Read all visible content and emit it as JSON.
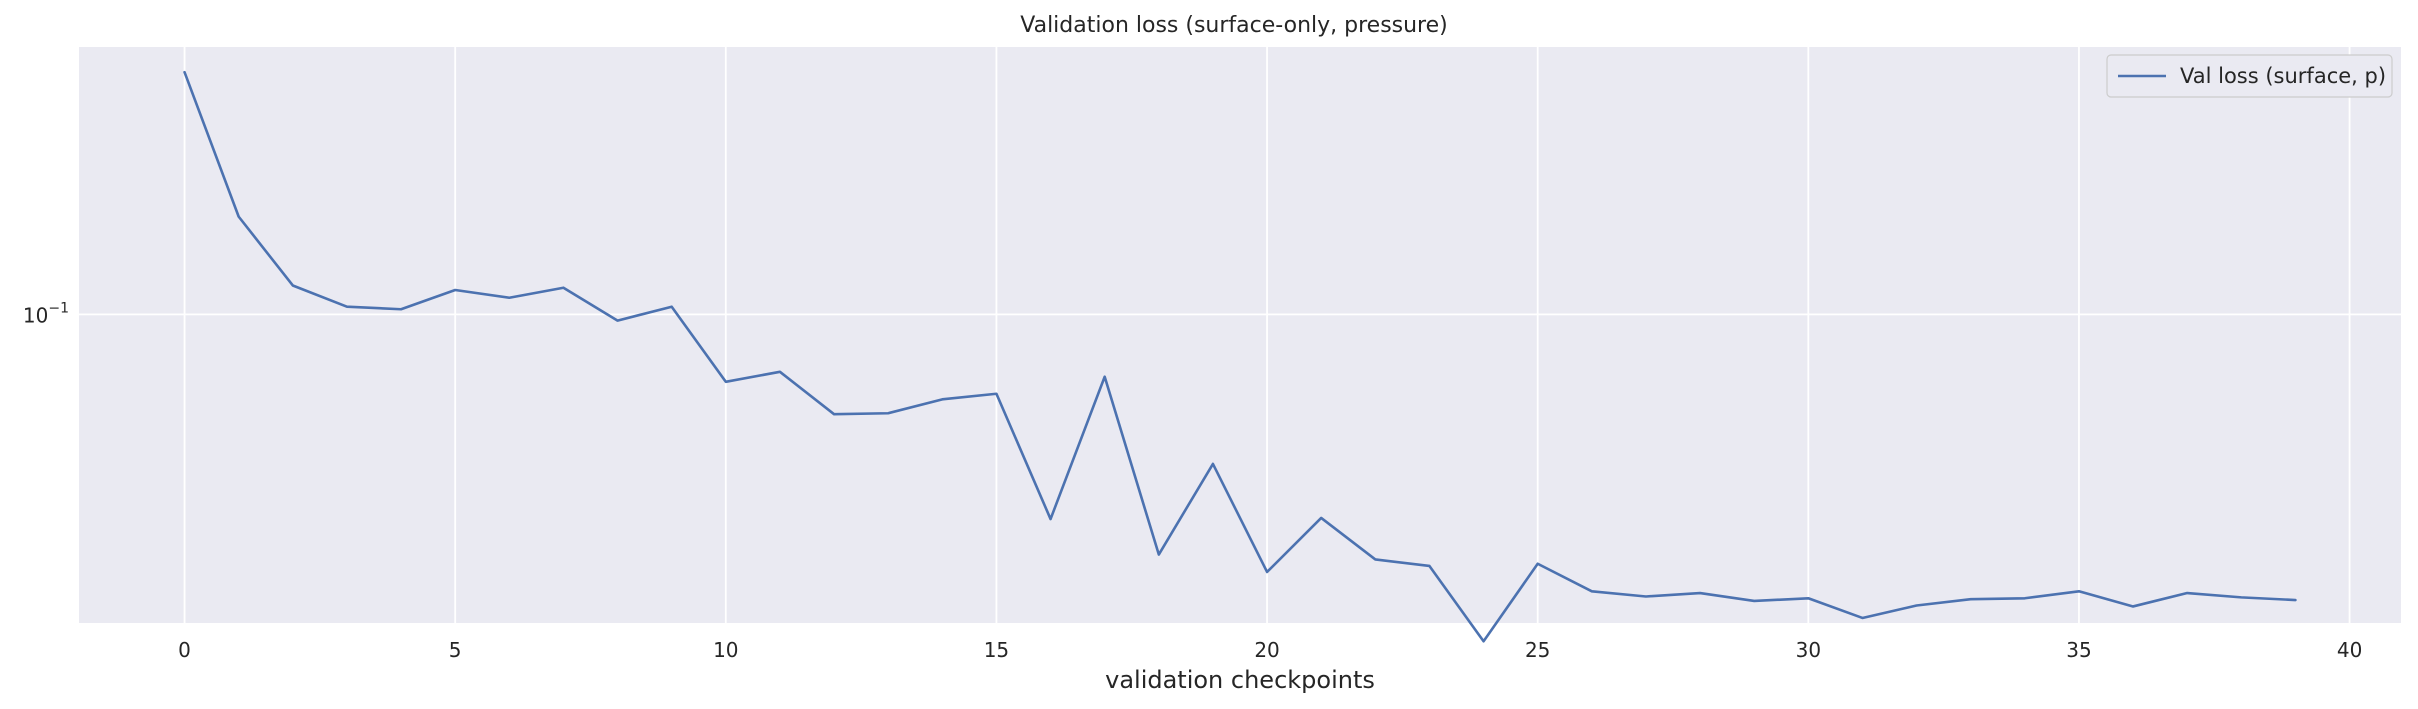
{
  "chart_data": {
    "type": "line",
    "title": "Validation loss (surface-only, pressure)",
    "xlabel": "validation checkpoints",
    "ylabel": "",
    "yscale": "log",
    "xlim": [
      -1.95,
      40.95
    ],
    "ylim": [
      0.0171,
      0.462
    ],
    "x_ticks": [
      0,
      5,
      10,
      15,
      20,
      25,
      30,
      35,
      40
    ],
    "y_ticks": [
      {
        "value": 0.1,
        "base": "10",
        "exponent": "−1"
      }
    ],
    "grid": true,
    "legend_position": "top-right",
    "series": [
      {
        "name": "Val loss (surface, p)",
        "color": "#4c72b0",
        "x": [
          0,
          1,
          2,
          3,
          4,
          5,
          6,
          7,
          8,
          9,
          10,
          11,
          12,
          13,
          14,
          15,
          16,
          17,
          18,
          19,
          20,
          21,
          22,
          23,
          24,
          25,
          26,
          27,
          28,
          29,
          30,
          31,
          32,
          33,
          34,
          35,
          36,
          37,
          38,
          39
        ],
        "y": [
          0.4,
          0.175,
          0.118,
          0.1045,
          0.103,
          0.115,
          0.11,
          0.1165,
          0.0965,
          0.1045,
          0.068,
          0.072,
          0.0565,
          0.0568,
          0.0615,
          0.0635,
          0.031,
          0.07,
          0.0253,
          0.0425,
          0.0229,
          0.0312,
          0.0246,
          0.0237,
          0.0154,
          0.024,
          0.0205,
          0.0199,
          0.0203,
          0.0194,
          0.0197,
          0.0176,
          0.0189,
          0.0196,
          0.0197,
          0.0205,
          0.0188,
          0.0203,
          0.0198,
          0.0195
        ]
      }
    ]
  }
}
